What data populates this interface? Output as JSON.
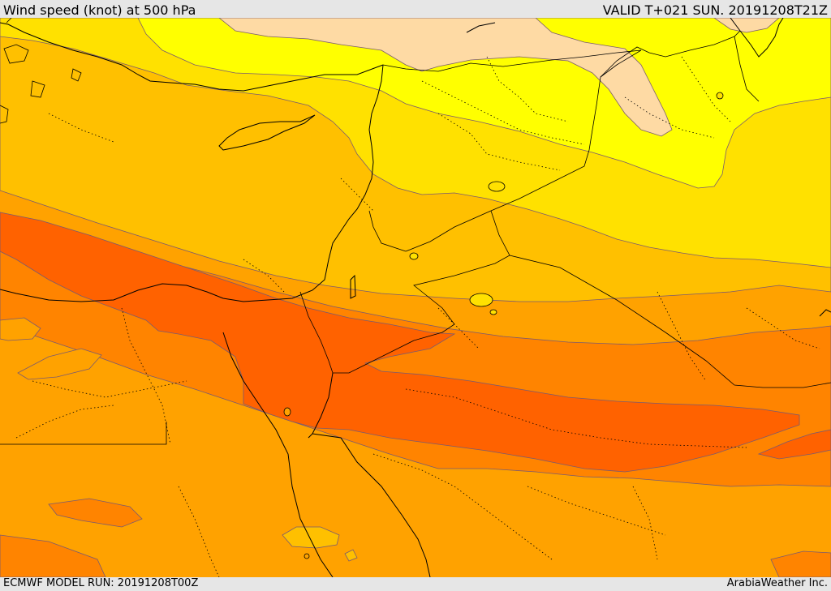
{
  "header": {
    "title": "Wind speed (knot) at 500 hPa",
    "valid_time": "VALID T+021 SUN. 20191208T21Z"
  },
  "footer": {
    "model_run": "ECMWF MODEL RUN: 20191208T00Z",
    "credit": "ArabiaWeather Inc."
  },
  "palette": {
    "peach": "#fedaa4",
    "yellow": "#ffff00",
    "gold": "#ffe100",
    "amber": "#ffc000",
    "orange_light": "#ffa200",
    "orange": "#ff8400",
    "orange_dark": "#ff6200"
  }
}
